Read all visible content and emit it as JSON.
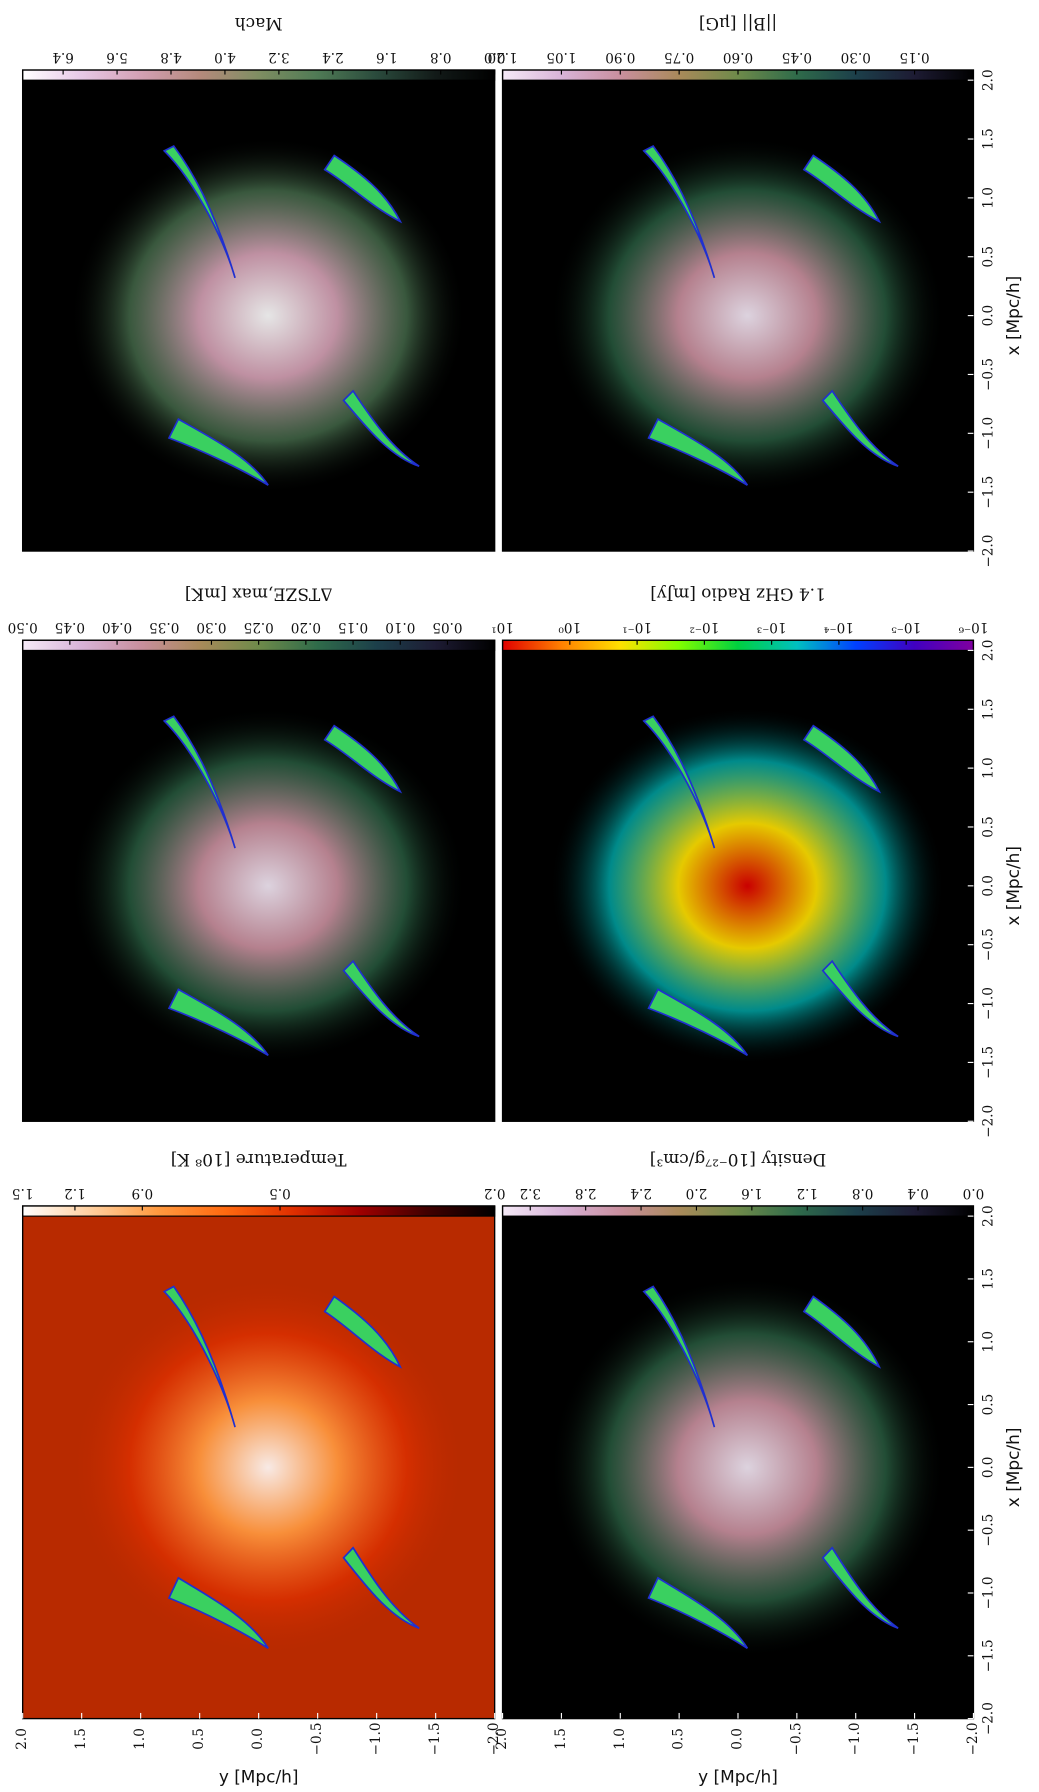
{
  "chart_data": [
    {
      "type": "heatmap",
      "title": "Mach",
      "background": "#000000",
      "colorbar": {
        "clim": [
          7.0,
          0
        ],
        "log": false,
        "ticks": [
          6.4,
          5.6,
          4.8,
          {
            "value": 4,
            "label": "4.0"
          },
          3.2,
          2.4,
          1.6,
          0.8,
          {
            "value": 0,
            "label": "0.0"
          }
        ],
        "colors": [
          "#ffffff",
          "#e6c8e6",
          "#d4a0b4",
          "#b58a7c",
          "#7f8e62",
          "#4f7a55",
          "#2a4a3c",
          "#121a18",
          "#000000"
        ]
      }
    },
    {
      "type": "heatmap",
      "title": "||B|| [μG]",
      "background": "#000000",
      "colorbar": {
        "clim": [
          1.2,
          0
        ],
        "log": false,
        "ticks": [
          {
            "value": 1.2,
            "label": "1.20"
          },
          1.05,
          {
            "value": 0.9,
            "label": "0.90"
          },
          0.75,
          {
            "value": 0.6,
            "label": "0.60"
          },
          0.45,
          {
            "value": 0.3,
            "label": "0.30"
          },
          0.15
        ],
        "colors": [
          "#f5eaf7",
          "#d8b3d8",
          "#c98f9e",
          "#a98a5a",
          "#6e8a4a",
          "#2f6b4a",
          "#1c3f4a",
          "#1d1b33",
          "#000000"
        ]
      },
      "xlabel": "x [Mpc/h]",
      "xlim": [
        2,
        -2
      ],
      "xticks": [
        {
          "value": 2,
          "label": "2.0"
        },
        1.5,
        {
          "value": 1,
          "label": "1.0"
        },
        0.5,
        {
          "value": 0,
          "label": "0.0"
        },
        {
          "value": -0.5,
          "label": "−0.5"
        },
        {
          "value": -1,
          "label": "−1.0"
        },
        {
          "value": -1.5,
          "label": "−1.5"
        },
        {
          "value": -2,
          "label": "−2.0"
        }
      ]
    },
    {
      "type": "heatmap",
      "title": "ΔTSZE,max [mK]",
      "background": "#000000",
      "colorbar": {
        "clim": [
          0.5,
          0
        ],
        "log": false,
        "ticks": [
          {
            "value": 0.5,
            "label": "0.50"
          },
          0.45,
          {
            "value": 0.4,
            "label": "0.40"
          },
          0.35,
          {
            "value": 0.3,
            "label": "0.30"
          },
          0.25,
          {
            "value": 0.2,
            "label": "0.20"
          },
          0.15,
          {
            "value": 0.1,
            "label": "0.10"
          },
          0.05
        ],
        "colors": [
          "#f5eaf7",
          "#d8b3d8",
          "#c98f9e",
          "#a98a5a",
          "#6e8a4a",
          "#2f6b4a",
          "#1c3f4a",
          "#1d1b33",
          "#000000"
        ]
      }
    },
    {
      "type": "heatmap",
      "title": "1.4 GHz Radio [mJy]",
      "background": "#000000",
      "colorbar": {
        "clim": [
          10,
          1e-06
        ],
        "log": true,
        "ticks": [
          {
            "value": 10,
            "label": "10¹"
          },
          {
            "value": 1,
            "label": "10⁰"
          },
          {
            "value": 0.1,
            "label": "10⁻¹"
          },
          {
            "value": 0.01,
            "label": "10⁻²"
          },
          {
            "value": 0.001,
            "label": "10⁻³"
          },
          {
            "value": 0.0001,
            "label": "10⁻⁴"
          },
          {
            "value": 1e-05,
            "label": "10⁻⁵"
          },
          {
            "value": 1e-06,
            "label": "10⁻⁶"
          }
        ],
        "colors": [
          "#e00000",
          "#ff8000",
          "#ffe000",
          "#80ff00",
          "#00d040",
          "#00c0c0",
          "#0040ff",
          "#4000c0",
          "#8000a0"
        ]
      },
      "xlabel": "x [Mpc/h]",
      "xlim": [
        2,
        -2
      ],
      "xticks": [
        {
          "value": 2,
          "label": "2.0"
        },
        1.5,
        {
          "value": 1,
          "label": "1.0"
        },
        0.5,
        {
          "value": 0,
          "label": "0.0"
        },
        {
          "value": -0.5,
          "label": "−0.5"
        },
        {
          "value": -1,
          "label": "−1.0"
        },
        {
          "value": -1.5,
          "label": "−1.5"
        },
        {
          "value": -2,
          "label": "−2.0"
        }
      ]
    },
    {
      "type": "heatmap",
      "title": "Temperature [10⁸ K]",
      "background": "#b82a00",
      "colorbar": {
        "clim": [
          1.5,
          0.2
        ],
        "log": true,
        "ticks": [
          1.5,
          1.2,
          0.9,
          0.5,
          0.2
        ],
        "colors": [
          "#ffffff",
          "#ffd0a0",
          "#ff9a40",
          "#ff6a10",
          "#e03000",
          "#a00000",
          "#400000",
          "#000000"
        ]
      },
      "ylabel": "y [Mpc/h]",
      "ylim": [
        2,
        -2
      ],
      "yticks": [
        {
          "value": 2,
          "label": "2.0"
        },
        1.5,
        {
          "value": 1,
          "label": "1.0"
        },
        0.5,
        {
          "value": 0,
          "label": "0.0"
        },
        {
          "value": -0.5,
          "label": "−0.5"
        },
        {
          "value": -1,
          "label": "−1.0"
        },
        {
          "value": -1.5,
          "label": "−1.5"
        },
        {
          "value": -2,
          "label": "−2.0"
        }
      ]
    },
    {
      "type": "heatmap",
      "title": "Density [10⁻²⁷g/cm³]",
      "background": "#000000",
      "colorbar": {
        "clim": [
          3.4,
          0
        ],
        "log": false,
        "ticks": [
          3.2,
          2.8,
          2.4,
          {
            "value": 2,
            "label": "2.0"
          },
          1.6,
          1.2,
          0.8,
          0.4,
          {
            "value": 0,
            "label": "0.0"
          }
        ],
        "colors": [
          "#f5eaf7",
          "#d8b3d8",
          "#c98f9e",
          "#a98a5a",
          "#6e8a4a",
          "#2f6b4a",
          "#1c3f4a",
          "#1d1b33",
          "#000000"
        ]
      },
      "xlabel": "x [Mpc/h]",
      "xlim": [
        2,
        -2
      ],
      "xticks": [
        {
          "value": 2,
          "label": "2.0"
        },
        1.5,
        {
          "value": 1,
          "label": "1.0"
        },
        0.5,
        {
          "value": 0,
          "label": "0.0"
        },
        {
          "value": -0.5,
          "label": "−0.5"
        },
        {
          "value": -1,
          "label": "−1.0"
        },
        {
          "value": -1.5,
          "label": "−1.5"
        },
        {
          "value": -2,
          "label": "−2.0"
        }
      ],
      "ylabel": "y [Mpc/h]",
      "ylim": [
        2,
        -2
      ],
      "yticks": [
        {
          "value": 2,
          "label": "2.0"
        },
        1.5,
        {
          "value": 1,
          "label": "1.0"
        },
        0.5,
        {
          "value": 0,
          "label": "0.0"
        },
        {
          "value": -0.5,
          "label": "−0.5"
        },
        {
          "value": -1,
          "label": "−1.0"
        },
        {
          "value": -1.5,
          "label": "−1.5"
        },
        {
          "value": -2,
          "label": "−2.0"
        }
      ]
    }
  ]
}
